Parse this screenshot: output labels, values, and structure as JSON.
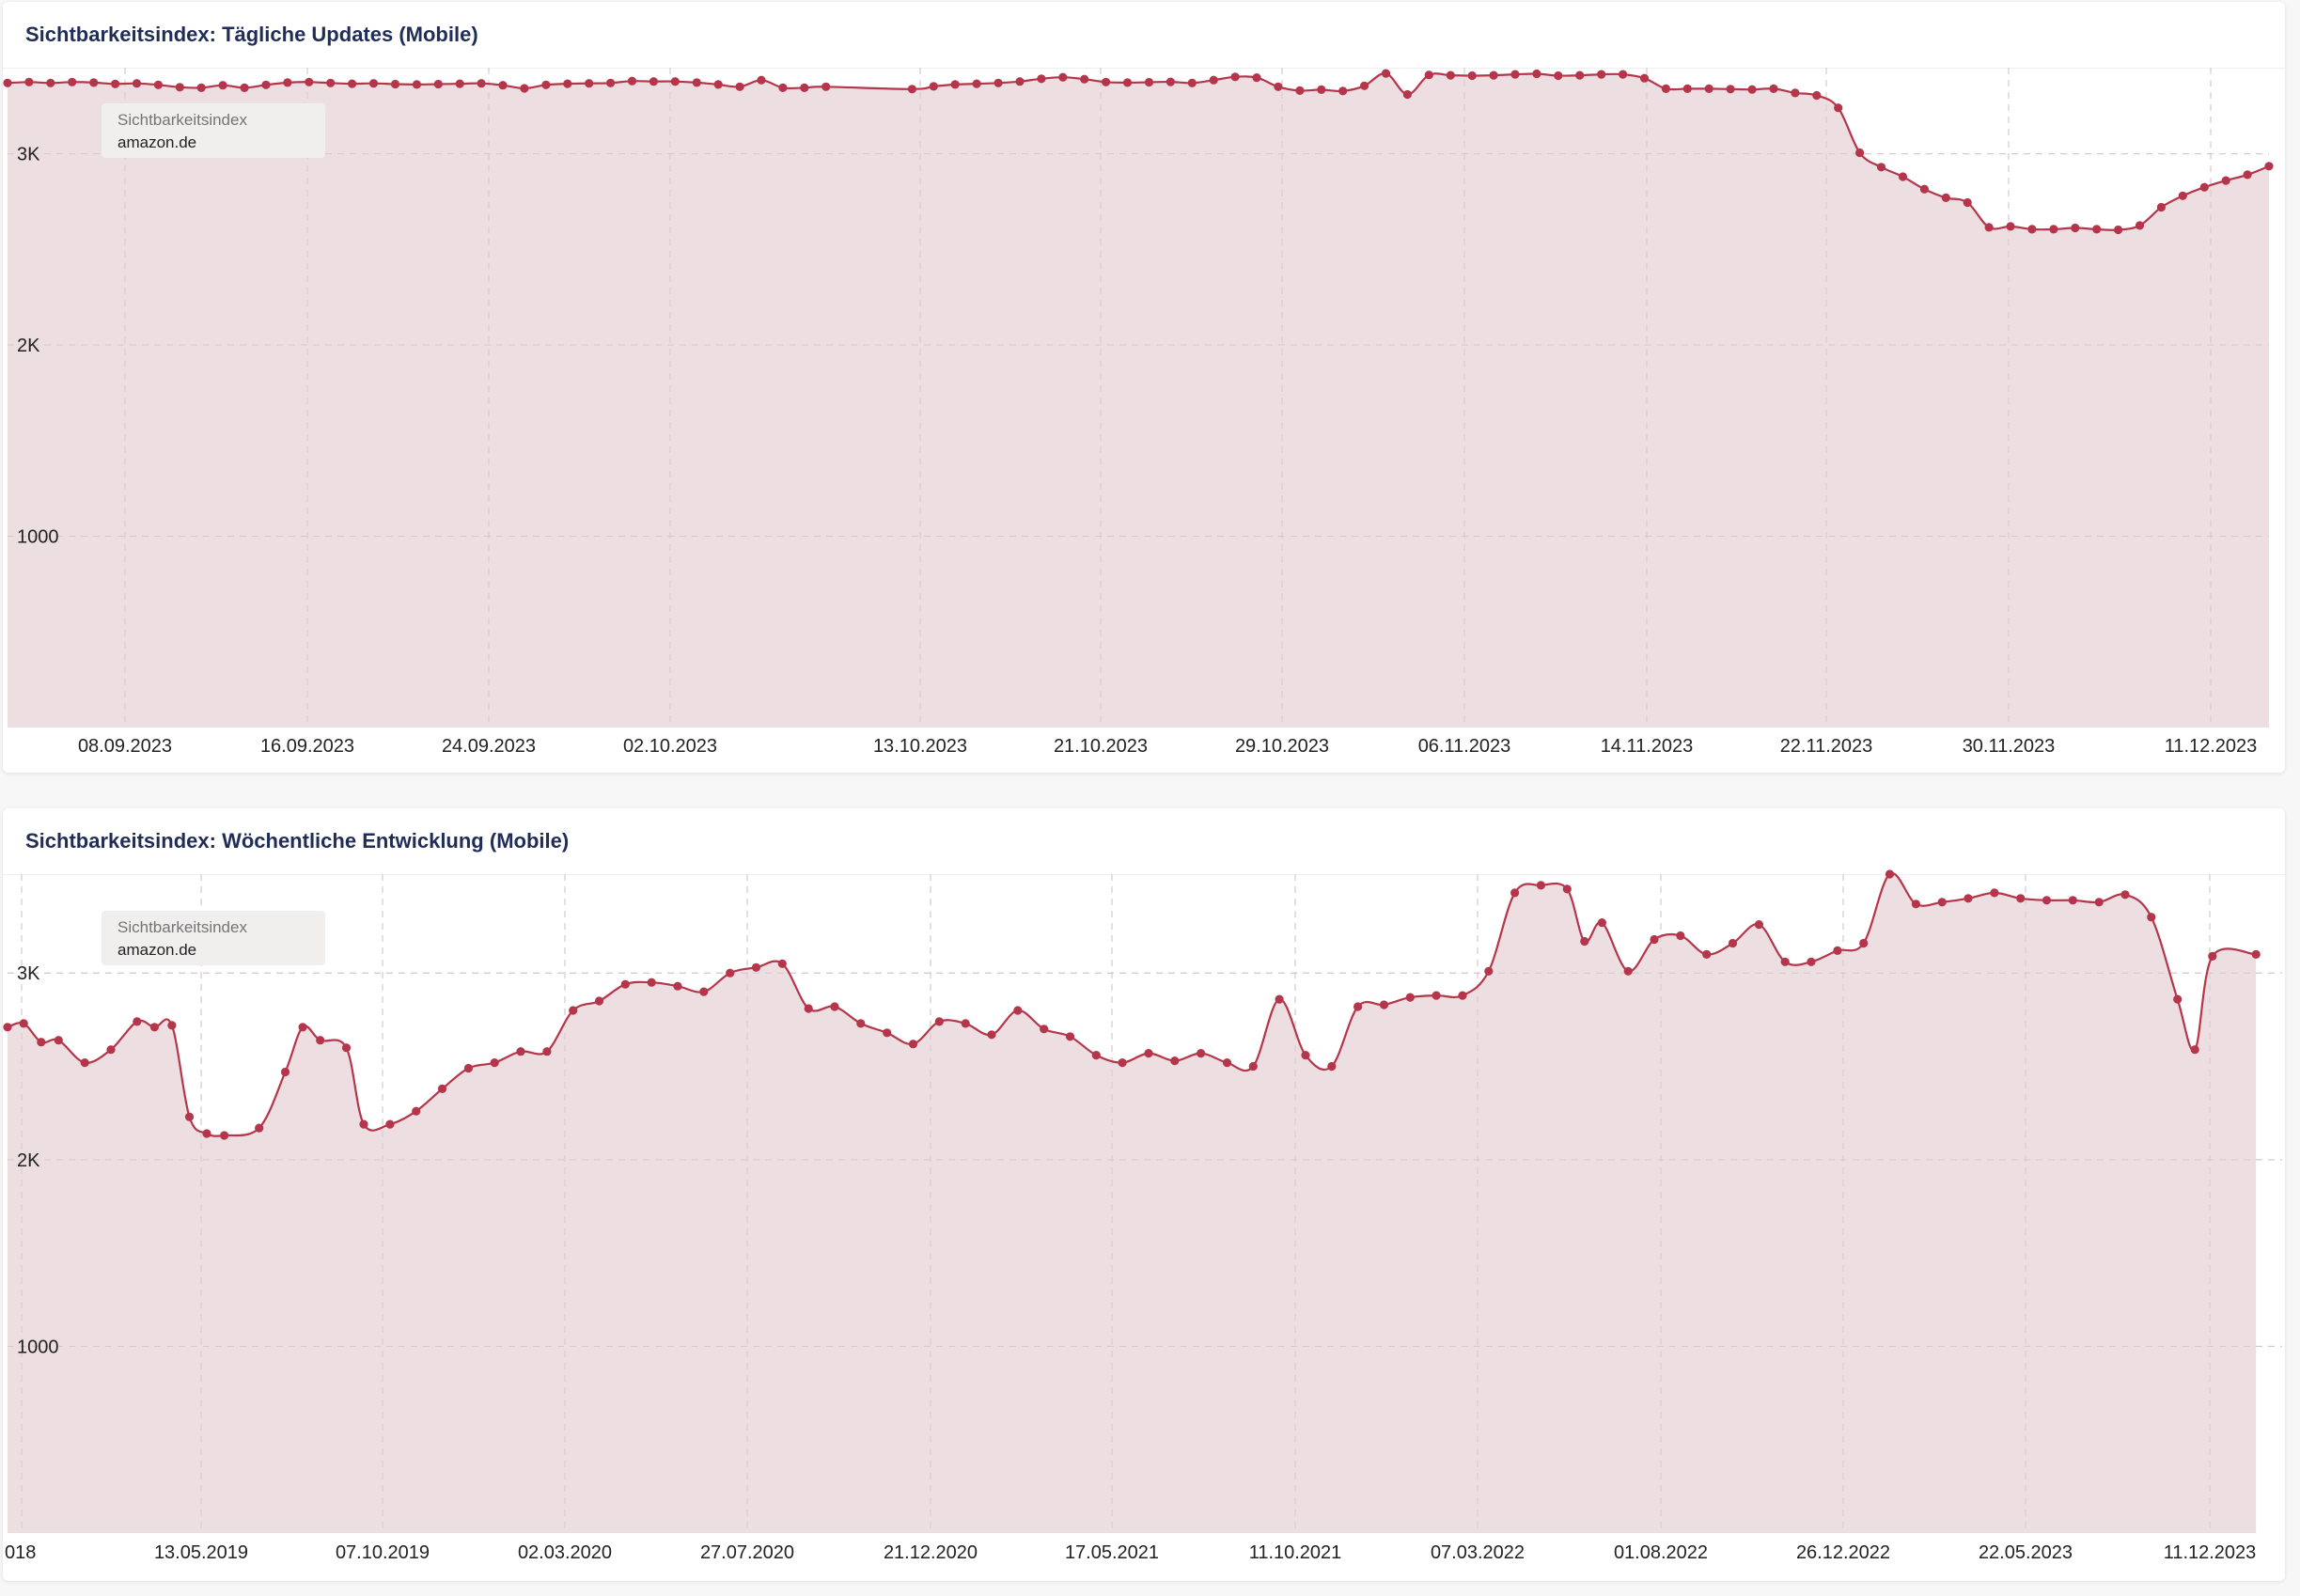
{
  "colors": {
    "line": "#b5364b",
    "area": "#ecdce0",
    "grid": "#d9d9d9",
    "title": "#1f2d57"
  },
  "chart_data": [
    {
      "type": "area",
      "title": "Sichtbarkeitsindex: Tägliche Updates (Mobile)",
      "legend": {
        "label": "Sichtbarkeitsindex",
        "domain": "amazon.de"
      },
      "xlabel": "",
      "ylabel": "",
      "x_start": "29.08.2023",
      "x_end": "12.12.2023",
      "ylim": [
        0,
        3450
      ],
      "y_ticks": [
        {
          "v": 1000,
          "label": "1000"
        },
        {
          "v": 2000,
          "label": "2K"
        },
        {
          "v": 3000,
          "label": "3K"
        }
      ],
      "x_ticks": [
        "08.09.2023",
        "16.09.2023",
        "24.09.2023",
        "02.10.2023",
        "13.10.2023",
        "21.10.2023",
        "29.10.2023",
        "06.11.2023",
        "14.11.2023",
        "22.11.2023",
        "30.11.2023",
        "11.12.2023"
      ],
      "grid": true,
      "legend_position": "top-left",
      "series": [
        {
          "name": "amazon.de",
          "points": [
            [
              "29.08.2023",
              3370
            ],
            [
              "30.08.2023",
              3375
            ],
            [
              "31.08.2023",
              3370
            ],
            [
              "01.09.2023",
              3375
            ],
            [
              "02.09.2023",
              3372
            ],
            [
              "03.09.2023",
              3365
            ],
            [
              "04.09.2023",
              3368
            ],
            [
              "05.09.2023",
              3360
            ],
            [
              "06.09.2023",
              3348
            ],
            [
              "07.09.2023",
              3345
            ],
            [
              "08.09.2023",
              3358
            ],
            [
              "09.09.2023",
              3345
            ],
            [
              "10.09.2023",
              3360
            ],
            [
              "11.09.2023",
              3372
            ],
            [
              "12.09.2023",
              3375
            ],
            [
              "13.09.2023",
              3370
            ],
            [
              "14.09.2023",
              3366
            ],
            [
              "15.09.2023",
              3368
            ],
            [
              "16.09.2023",
              3364
            ],
            [
              "17.09.2023",
              3362
            ],
            [
              "18.09.2023",
              3364
            ],
            [
              "19.09.2023",
              3366
            ],
            [
              "20.09.2023",
              3368
            ],
            [
              "21.09.2023",
              3358
            ],
            [
              "22.09.2023",
              3342
            ],
            [
              "23.09.2023",
              3360
            ],
            [
              "24.09.2023",
              3366
            ],
            [
              "25.09.2023",
              3368
            ],
            [
              "26.09.2023",
              3370
            ],
            [
              "27.09.2023",
              3380
            ],
            [
              "28.09.2023",
              3378
            ],
            [
              "29.09.2023",
              3378
            ],
            [
              "30.09.2023",
              3372
            ],
            [
              "01.10.2023",
              3362
            ],
            [
              "02.10.2023",
              3350
            ],
            [
              "03.10.2023",
              3385
            ],
            [
              "04.10.2023",
              3345
            ],
            [
              "05.10.2023",
              3345
            ],
            [
              "06.10.2023",
              3350
            ],
            [
              "10.10.2023",
              3338
            ],
            [
              "11.10.2023",
              3352
            ],
            [
              "12.10.2023",
              3362
            ],
            [
              "13.10.2023",
              3366
            ],
            [
              "14.10.2023",
              3370
            ],
            [
              "15.10.2023",
              3378
            ],
            [
              "16.10.2023",
              3392
            ],
            [
              "17.10.2023",
              3400
            ],
            [
              "18.10.2023",
              3390
            ],
            [
              "19.10.2023",
              3375
            ],
            [
              "20.10.2023",
              3372
            ],
            [
              "21.10.2023",
              3374
            ],
            [
              "22.10.2023",
              3376
            ],
            [
              "23.10.2023",
              3370
            ],
            [
              "24.10.2023",
              3385
            ],
            [
              "25.10.2023",
              3402
            ],
            [
              "26.10.2023",
              3398
            ],
            [
              "27.10.2023",
              3350
            ],
            [
              "28.10.2023",
              3330
            ],
            [
              "29.10.2023",
              3335
            ],
            [
              "30.10.2023",
              3328
            ],
            [
              "31.10.2023",
              3355
            ],
            [
              "01.11.2023",
              3420
            ],
            [
              "02.11.2023",
              3310
            ],
            [
              "03.11.2023",
              3412
            ],
            [
              "04.11.2023",
              3410
            ],
            [
              "05.11.2023",
              3408
            ],
            [
              "06.11.2023",
              3410
            ],
            [
              "07.11.2023",
              3415
            ],
            [
              "08.11.2023",
              3418
            ],
            [
              "09.11.2023",
              3408
            ],
            [
              "10.11.2023",
              3410
            ],
            [
              "11.11.2023",
              3415
            ],
            [
              "12.11.2023",
              3415
            ],
            [
              "13.11.2023",
              3395
            ],
            [
              "14.11.2023",
              3340
            ],
            [
              "15.11.2023",
              3340
            ],
            [
              "16.11.2023",
              3340
            ],
            [
              "17.11.2023",
              3338
            ],
            [
              "18.11.2023",
              3336
            ],
            [
              "19.11.2023",
              3340
            ],
            [
              "20.11.2023",
              3318
            ],
            [
              "21.11.2023",
              3305
            ],
            [
              "22.11.2023",
              3240
            ],
            [
              "23.11.2023",
              3005
            ],
            [
              "24.11.2023",
              2930
            ],
            [
              "25.11.2023",
              2880
            ],
            [
              "26.11.2023",
              2815
            ],
            [
              "27.11.2023",
              2770
            ],
            [
              "28.11.2023",
              2745
            ],
            [
              "29.11.2023",
              2615
            ],
            [
              "30.11.2023",
              2620
            ],
            [
              "01.12.2023",
              2605
            ],
            [
              "02.12.2023",
              2605
            ],
            [
              "03.12.2023",
              2612
            ],
            [
              "04.12.2023",
              2605
            ],
            [
              "05.12.2023",
              2602
            ],
            [
              "06.12.2023",
              2625
            ],
            [
              "07.12.2023",
              2720
            ],
            [
              "08.12.2023",
              2780
            ],
            [
              "09.12.2023",
              2825
            ],
            [
              "10.12.2023",
              2860
            ],
            [
              "11.12.2023",
              2890
            ],
            [
              "12.12.2023",
              2935
            ]
          ]
        }
      ]
    },
    {
      "type": "area",
      "title": "Sichtbarkeitsindex: Wöchentliche Entwicklung (Mobile)",
      "legend": {
        "label": "Sichtbarkeitsindex",
        "domain": "amazon.de"
      },
      "xlabel": "",
      "ylabel": "",
      "x_start": "01.01.2019",
      "x_end": "01.01.2024",
      "ylim": [
        0,
        3530
      ],
      "y_ticks": [
        {
          "v": 1000,
          "label": "1000"
        },
        {
          "v": 2000,
          "label": "2K"
        },
        {
          "v": 3000,
          "label": "3K"
        }
      ],
      "x_ticks": [
        "018",
        "13.05.2019",
        "07.10.2019",
        "02.03.2020",
        "27.07.2020",
        "21.12.2020",
        "17.05.2021",
        "11.10.2021",
        "07.03.2022",
        "01.08.2022",
        "26.12.2022",
        "22.05.2023",
        "11.12.2023"
      ],
      "grid": true,
      "legend_position": "top-left",
      "series": [
        {
          "name": "amazon.de",
          "points": [
            [
              "01.01.2019",
              2710
            ],
            [
              "14.01.2019",
              2730
            ],
            [
              "28.01.2019",
              2630
            ],
            [
              "11.02.2019",
              2640
            ],
            [
              "04.03.2019",
              2520
            ],
            [
              "25.03.2019",
              2590
            ],
            [
              "15.04.2019",
              2740
            ],
            [
              "29.04.2019",
              2710
            ],
            [
              "13.05.2019",
              2720
            ],
            [
              "27.05.2019",
              2230
            ],
            [
              "10.06.2019",
              2140
            ],
            [
              "24.06.2019",
              2130
            ],
            [
              "22.07.2019",
              2170
            ],
            [
              "12.08.2019",
              2470
            ],
            [
              "26.08.2019",
              2710
            ],
            [
              "09.09.2019",
              2640
            ],
            [
              "30.09.2019",
              2600
            ],
            [
              "14.10.2019",
              2190
            ],
            [
              "04.11.2019",
              2190
            ],
            [
              "25.11.2019",
              2260
            ],
            [
              "16.12.2019",
              2380
            ],
            [
              "06.01.2020",
              2490
            ],
            [
              "27.01.2020",
              2520
            ],
            [
              "17.02.2020",
              2580
            ],
            [
              "09.03.2020",
              2580
            ],
            [
              "30.03.2020",
              2800
            ],
            [
              "20.04.2020",
              2850
            ],
            [
              "11.05.2020",
              2940
            ],
            [
              "01.06.2020",
              2950
            ],
            [
              "22.06.2020",
              2930
            ],
            [
              "13.07.2020",
              2900
            ],
            [
              "03.08.2020",
              3000
            ],
            [
              "24.08.2020",
              3030
            ],
            [
              "14.09.2020",
              3050
            ],
            [
              "05.10.2020",
              2810
            ],
            [
              "26.10.2020",
              2820
            ],
            [
              "16.11.2020",
              2730
            ],
            [
              "07.12.2020",
              2680
            ],
            [
              "28.12.2020",
              2620
            ],
            [
              "18.01.2021",
              2740
            ],
            [
              "08.02.2021",
              2730
            ],
            [
              "01.03.2021",
              2670
            ],
            [
              "22.03.2021",
              2800
            ],
            [
              "12.04.2021",
              2700
            ],
            [
              "03.05.2021",
              2660
            ],
            [
              "24.05.2021",
              2560
            ],
            [
              "14.06.2021",
              2520
            ],
            [
              "05.07.2021",
              2570
            ],
            [
              "26.07.2021",
              2530
            ],
            [
              "16.08.2021",
              2570
            ],
            [
              "06.09.2021",
              2520
            ],
            [
              "27.09.2021",
              2500
            ],
            [
              "18.10.2021",
              2860
            ],
            [
              "08.11.2021",
              2560
            ],
            [
              "29.11.2021",
              2500
            ],
            [
              "20.12.2021",
              2820
            ],
            [
              "10.01.2022",
              2830
            ],
            [
              "31.01.2022",
              2870
            ],
            [
              "21.02.2022",
              2880
            ],
            [
              "14.03.2022",
              2880
            ],
            [
              "04.04.2022",
              3010
            ],
            [
              "25.04.2022",
              3430
            ],
            [
              "16.05.2022",
              3470
            ],
            [
              "06.06.2022",
              3450
            ],
            [
              "20.06.2022",
              3170
            ],
            [
              "04.07.2022",
              3270
            ],
            [
              "25.07.2022",
              3010
            ],
            [
              "15.08.2022",
              3180
            ],
            [
              "05.09.2022",
              3200
            ],
            [
              "26.09.2022",
              3100
            ],
            [
              "17.10.2022",
              3160
            ],
            [
              "07.11.2022",
              3260
            ],
            [
              "28.11.2022",
              3060
            ],
            [
              "19.12.2022",
              3060
            ],
            [
              "09.01.2023",
              3120
            ],
            [
              "30.01.2023",
              3160
            ],
            [
              "20.02.2023",
              3530
            ],
            [
              "13.03.2023",
              3370
            ],
            [
              "03.04.2023",
              3380
            ],
            [
              "24.04.2023",
              3400
            ],
            [
              "15.05.2023",
              3430
            ],
            [
              "05.06.2023",
              3400
            ],
            [
              "26.06.2023",
              3390
            ],
            [
              "17.07.2023",
              3390
            ],
            [
              "07.08.2023",
              3380
            ],
            [
              "28.08.2023",
              3420
            ],
            [
              "18.09.2023",
              3300
            ],
            [
              "09.10.2023",
              2860
            ],
            [
              "23.10.2023",
              2590
            ],
            [
              "06.11.2023",
              3090
            ],
            [
              "11.12.2023",
              3100
            ]
          ]
        }
      ]
    }
  ]
}
